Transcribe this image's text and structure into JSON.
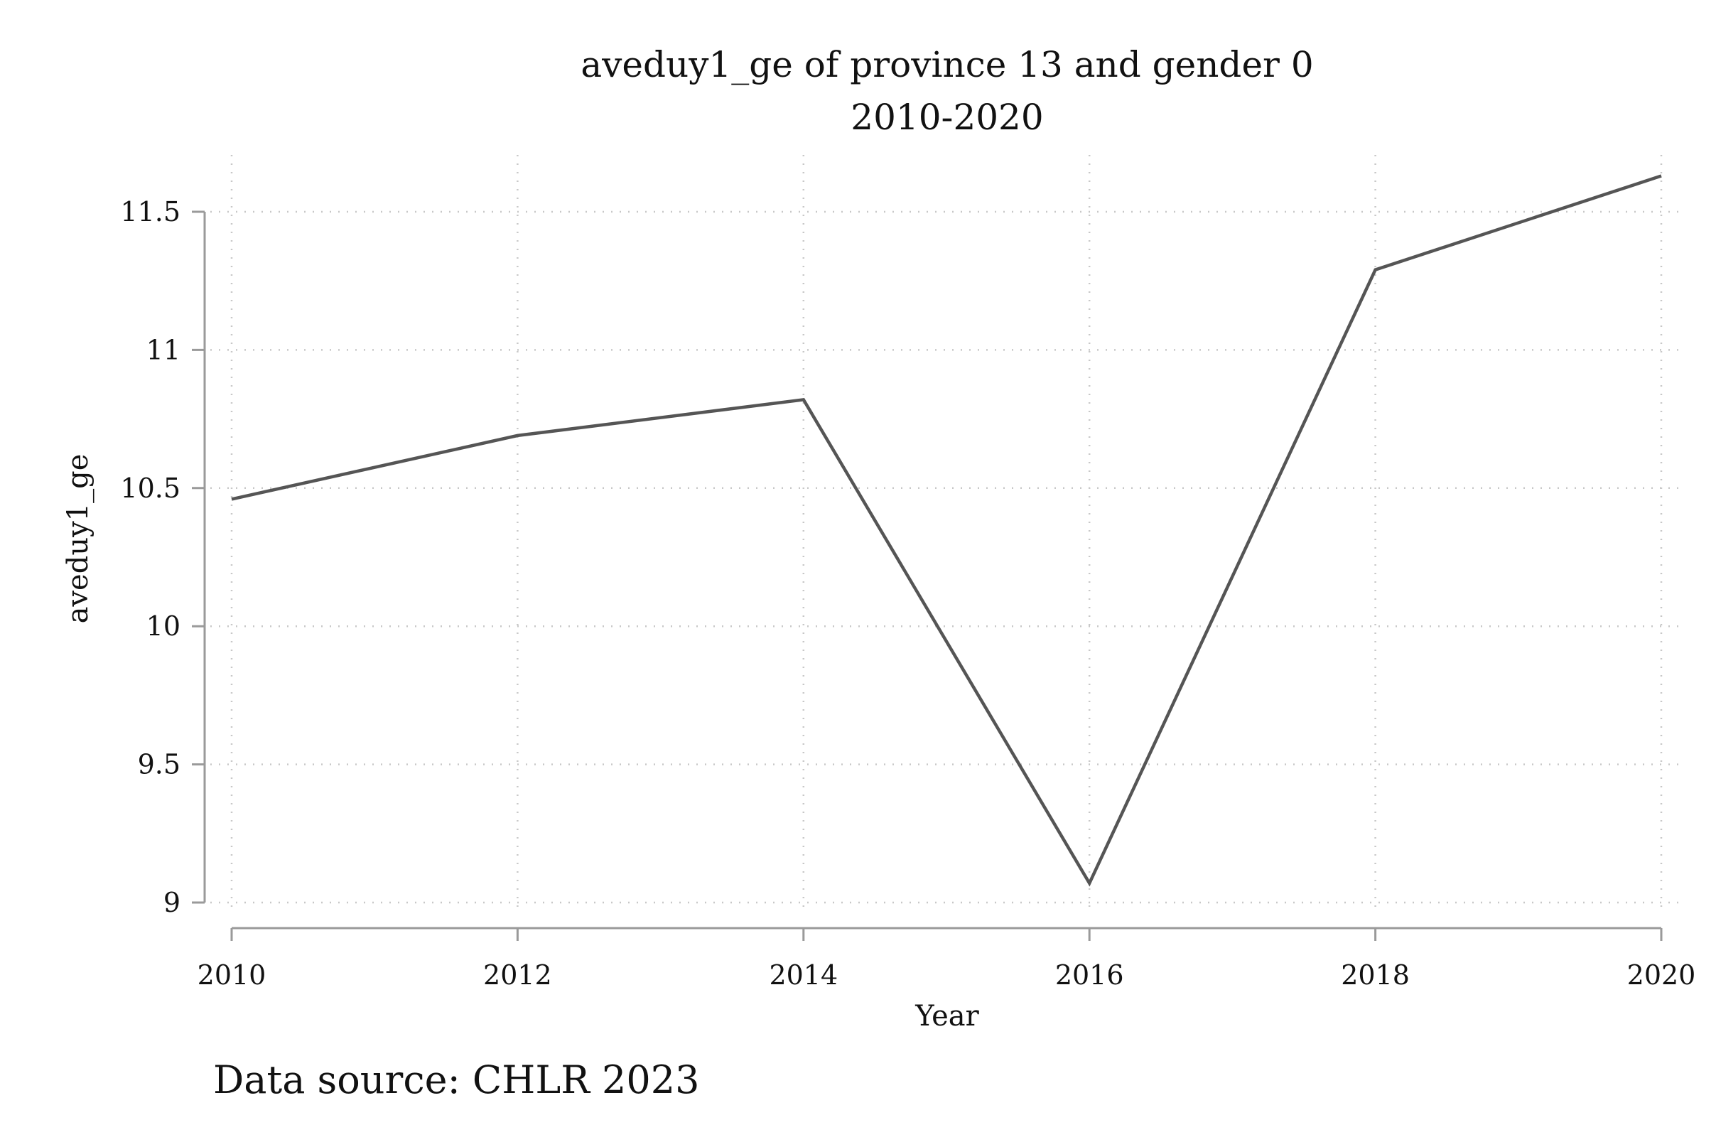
{
  "chart_data": {
    "type": "line",
    "title": "aveduy1_ge of province 13 and gender 0",
    "subtitle": "2010-2020",
    "xlabel": "Year",
    "ylabel": "aveduy1_ge",
    "x": [
      2010,
      2012,
      2014,
      2016,
      2018,
      2020
    ],
    "series": [
      {
        "values": [
          10.46,
          10.69,
          10.82,
          9.07,
          11.29,
          11.63
        ]
      }
    ],
    "xticks": [
      2010,
      2012,
      2014,
      2016,
      2018,
      2020
    ],
    "xtick_labels": [
      "2010",
      "2012",
      "2014",
      "2016",
      "2018",
      "2020"
    ],
    "yticks": [
      9,
      9.5,
      10,
      10.5,
      11,
      11.5
    ],
    "ytick_labels": [
      "9",
      "9.5",
      "10",
      "10.5",
      "11",
      "11.5"
    ],
    "xlim": [
      2010,
      2020
    ],
    "ylim": [
      9,
      11.5
    ],
    "grid": true,
    "legend": "none",
    "line_color": "#555555",
    "note": "Data source: CHLR 2023"
  }
}
